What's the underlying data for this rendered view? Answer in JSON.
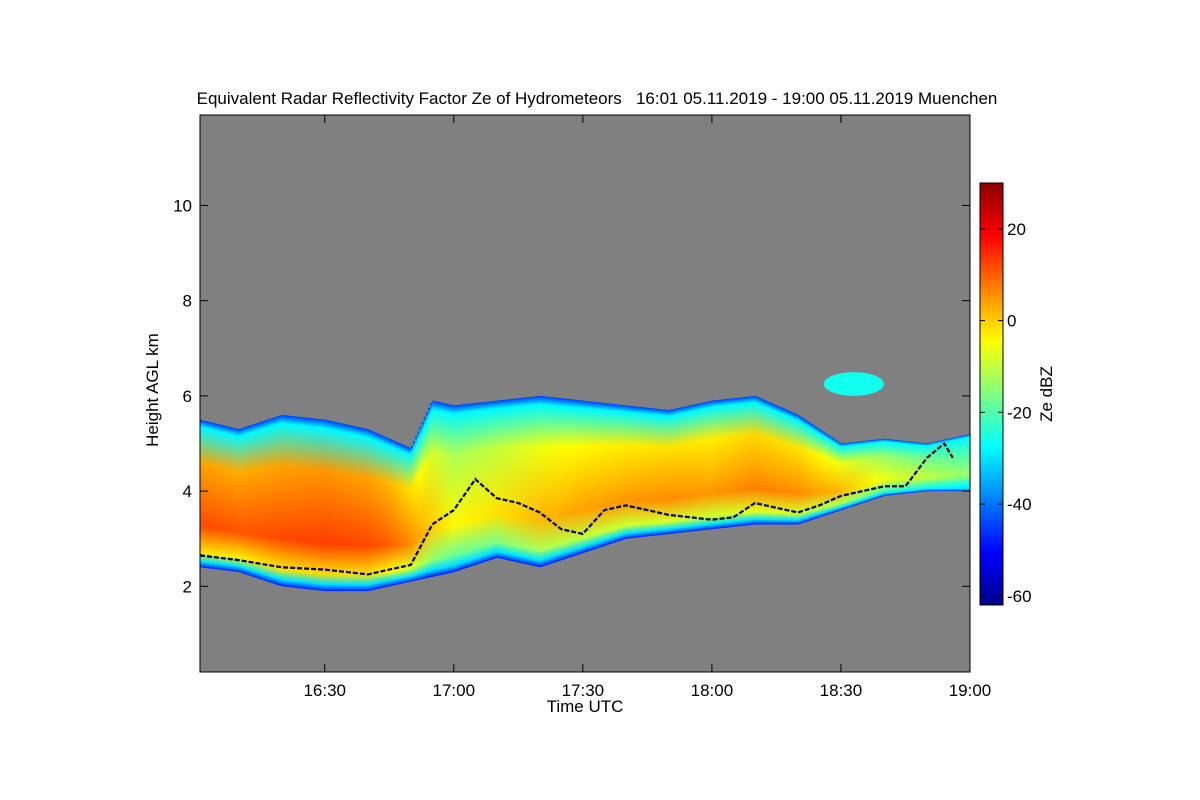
{
  "chart_data": {
    "type": "heatmap",
    "title": "Equivalent Radar Reflectivity Factor Ze of Hydrometeors   16:01 05.11.2019 - 19:00 05.11.2019 Muenchen",
    "xlabel": "Time UTC",
    "ylabel": "Height AGL km",
    "x_unit": "minutes since 16:00 UTC",
    "xlim": [
      1,
      180
    ],
    "ylim": [
      0.2,
      11.9
    ],
    "x_ticks": [
      {
        "value": 30,
        "label": "16:30"
      },
      {
        "value": 60,
        "label": "17:00"
      },
      {
        "value": 90,
        "label": "17:30"
      },
      {
        "value": 120,
        "label": "18:00"
      },
      {
        "value": 150,
        "label": "18:30"
      },
      {
        "value": 180,
        "label": "19:00"
      }
    ],
    "y_ticks": [
      {
        "value": 2,
        "label": "2"
      },
      {
        "value": 4,
        "label": "4"
      },
      {
        "value": 6,
        "label": "6"
      },
      {
        "value": 8,
        "label": "8"
      },
      {
        "value": 10,
        "label": "10"
      }
    ],
    "colorbar": {
      "label": "Ze dBZ",
      "range": [
        -62,
        30
      ],
      "ticks": [
        {
          "value": 20,
          "label": "20"
        },
        {
          "value": 0,
          "label": "0"
        },
        {
          "value": -20,
          "label": "-20"
        },
        {
          "value": -40,
          "label": "-40"
        },
        {
          "value": -60,
          "label": "-60"
        }
      ],
      "colormap": [
        "#00008b",
        "#0000ff",
        "#0080ff",
        "#00ffff",
        "#80ff80",
        "#ffff00",
        "#ff8000",
        "#ff0000",
        "#8b0000"
      ]
    },
    "background_color": "#808080",
    "cloud": [
      {
        "t": 1,
        "bottom": 2.4,
        "top": 5.5,
        "core": 12
      },
      {
        "t": 10,
        "bottom": 2.3,
        "top": 5.3,
        "core": 11
      },
      {
        "t": 20,
        "bottom": 2.0,
        "top": 5.6,
        "core": 12
      },
      {
        "t": 30,
        "bottom": 1.9,
        "top": 5.5,
        "core": 13
      },
      {
        "t": 40,
        "bottom": 1.9,
        "top": 5.3,
        "core": 12
      },
      {
        "t": 45,
        "bottom": 2.0,
        "top": 5.1,
        "core": 10
      },
      {
        "t": 50,
        "bottom": 2.1,
        "top": 4.9,
        "core": 6
      },
      {
        "t": 55,
        "bottom": 2.2,
        "top": 5.9,
        "core": 0
      },
      {
        "t": 60,
        "bottom": 2.3,
        "top": 5.8,
        "core": -4
      },
      {
        "t": 70,
        "bottom": 2.6,
        "top": 5.9,
        "core": -2
      },
      {
        "t": 80,
        "bottom": 2.4,
        "top": 6.0,
        "core": 2
      },
      {
        "t": 90,
        "bottom": 2.7,
        "top": 5.9,
        "core": 4
      },
      {
        "t": 100,
        "bottom": 3.0,
        "top": 5.8,
        "core": 5
      },
      {
        "t": 110,
        "bottom": 3.1,
        "top": 5.7,
        "core": 6
      },
      {
        "t": 120,
        "bottom": 3.2,
        "top": 5.9,
        "core": 5
      },
      {
        "t": 130,
        "bottom": 3.3,
        "top": 6.0,
        "core": 7
      },
      {
        "t": 140,
        "bottom": 3.3,
        "top": 5.6,
        "core": 6
      },
      {
        "t": 150,
        "bottom": 3.6,
        "top": 5.0,
        "core": 2
      },
      {
        "t": 160,
        "bottom": 3.9,
        "top": 5.1,
        "core": -6
      },
      {
        "t": 170,
        "bottom": 4.0,
        "top": 5.0,
        "core": -10
      },
      {
        "t": 180,
        "bottom": 4.0,
        "top": 5.2,
        "core": -14
      }
    ],
    "upper_patch": {
      "t_start": 146,
      "t_end": 160,
      "bottom": 6.0,
      "top": 6.5,
      "value": -26
    },
    "melting_layer": [
      {
        "t": 1,
        "h": 2.65
      },
      {
        "t": 10,
        "h": 2.55
      },
      {
        "t": 20,
        "h": 2.4
      },
      {
        "t": 30,
        "h": 2.35
      },
      {
        "t": 40,
        "h": 2.25
      },
      {
        "t": 45,
        "h": 2.35
      },
      {
        "t": 50,
        "h": 2.45
      },
      {
        "t": 55,
        "h": 3.3
      },
      {
        "t": 60,
        "h": 3.6
      },
      {
        "t": 65,
        "h": 4.25
      },
      {
        "t": 70,
        "h": 3.85
      },
      {
        "t": 75,
        "h": 3.75
      },
      {
        "t": 80,
        "h": 3.55
      },
      {
        "t": 85,
        "h": 3.2
      },
      {
        "t": 90,
        "h": 3.1
      },
      {
        "t": 95,
        "h": 3.6
      },
      {
        "t": 100,
        "h": 3.7
      },
      {
        "t": 105,
        "h": 3.6
      },
      {
        "t": 110,
        "h": 3.5
      },
      {
        "t": 115,
        "h": 3.45
      },
      {
        "t": 120,
        "h": 3.4
      },
      {
        "t": 125,
        "h": 3.45
      },
      {
        "t": 130,
        "h": 3.75
      },
      {
        "t": 135,
        "h": 3.65
      },
      {
        "t": 140,
        "h": 3.55
      },
      {
        "t": 145,
        "h": 3.7
      },
      {
        "t": 150,
        "h": 3.9
      },
      {
        "t": 155,
        "h": 4.0
      },
      {
        "t": 160,
        "h": 4.1
      },
      {
        "t": 165,
        "h": 4.1
      },
      {
        "t": 170,
        "h": 4.7
      },
      {
        "t": 174,
        "h": 5.0
      },
      {
        "t": 176,
        "h": 4.7
      }
    ]
  }
}
